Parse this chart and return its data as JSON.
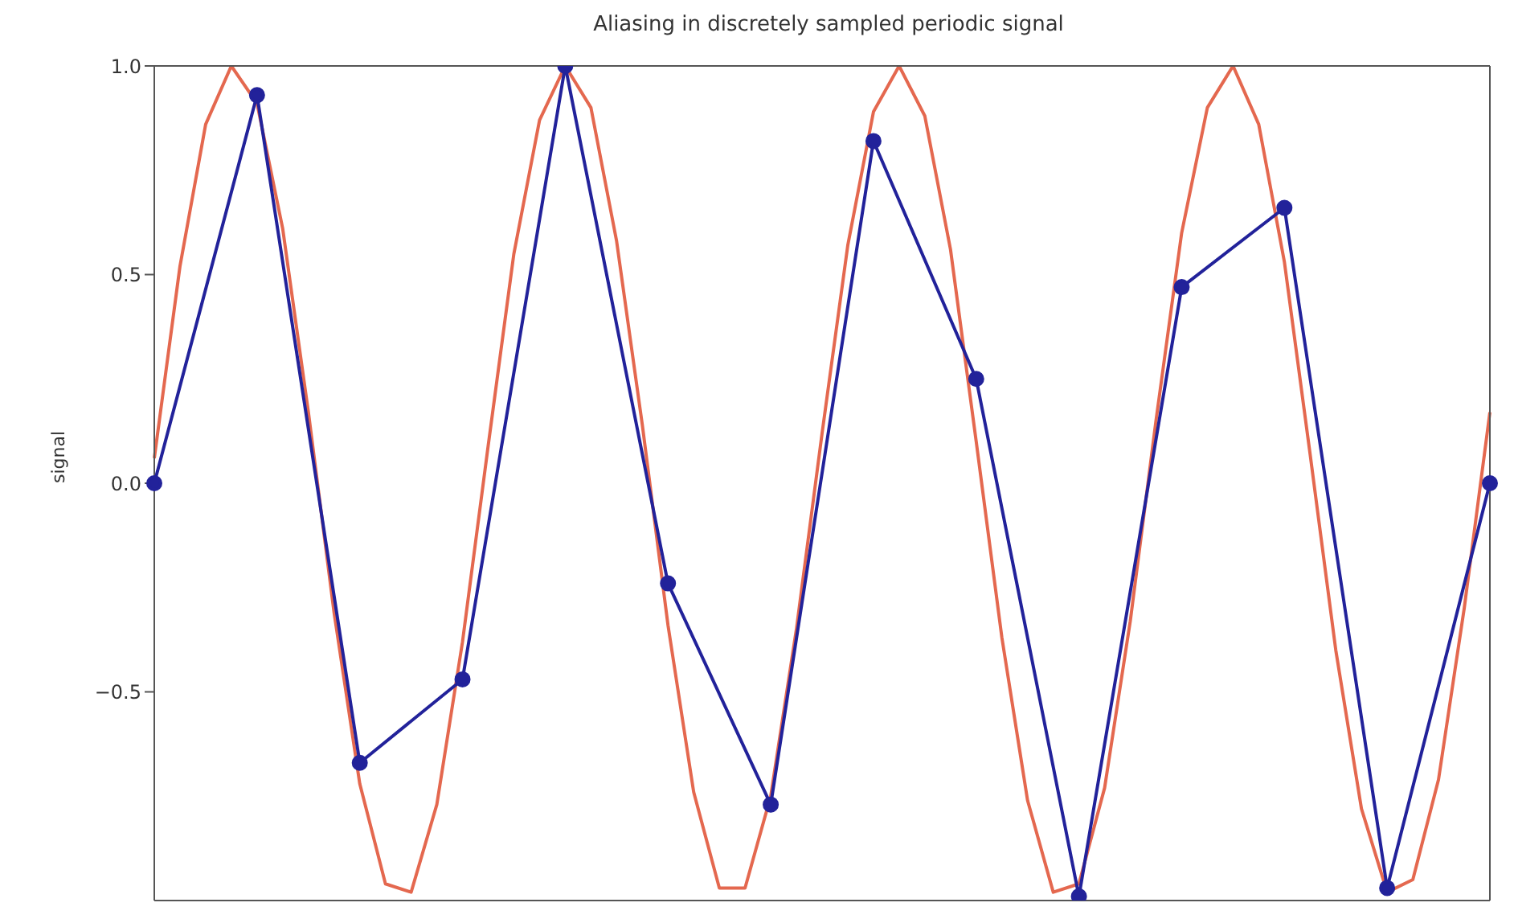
{
  "chart_data": {
    "type": "line",
    "title": "Aliasing in discretely sampled periodic signal",
    "ylabel": "signal",
    "categories": [
      null,
      null,
      null,
      null,
      null,
      null,
      null,
      null,
      null,
      null,
      null,
      null,
      null,
      null,
      null,
      null,
      null,
      null,
      null,
      null,
      null,
      null,
      null,
      null,
      null,
      null,
      null,
      null,
      null,
      null,
      null,
      null,
      null,
      null,
      null,
      null,
      null,
      null,
      null,
      null,
      null,
      null,
      null,
      null,
      null,
      null,
      null,
      null,
      null,
      null,
      null,
      null,
      null
    ],
    "series": [
      {
        "color": "#e4684f",
        "marker": "none",
        "values": [
          0.06,
          0.52,
          0.86,
          1.0,
          0.91,
          0.61,
          0.17,
          -0.31,
          -0.72,
          -0.96,
          -0.98,
          -0.77,
          -0.38,
          0.09,
          0.55,
          0.87,
          1.0,
          0.9,
          0.58,
          0.14,
          -0.34,
          -0.74,
          -0.97,
          -0.97,
          -0.75,
          -0.35,
          0.12,
          0.57,
          0.89,
          1.0,
          0.88,
          0.56,
          0.1,
          -0.37,
          -0.76,
          -0.98,
          -0.96,
          -0.73,
          -0.33,
          0.15,
          0.6,
          0.9,
          1.0,
          0.86,
          0.53,
          0.07,
          -0.4,
          -0.78,
          -0.98,
          -0.95,
          -0.71,
          -0.3,
          0.17
        ]
      },
      {
        "color": "#22229a",
        "marker": "circle",
        "values": [
          0.0,
          null,
          null,
          null,
          0.93,
          null,
          null,
          null,
          -0.67,
          null,
          null,
          null,
          -0.47,
          null,
          null,
          null,
          1.0,
          null,
          null,
          null,
          -0.24,
          null,
          null,
          null,
          -0.77,
          null,
          null,
          null,
          0.82,
          null,
          null,
          null,
          0.25,
          null,
          null,
          null,
          -0.99,
          null,
          null,
          null,
          0.47,
          null,
          null,
          null,
          0.66,
          null,
          null,
          null,
          -0.97,
          null,
          null,
          null,
          0.0
        ]
      }
    ],
    "ylim": [
      -1.0,
      1.0
    ],
    "yticks": [
      {
        "value": -0.5,
        "label": "−0.5"
      },
      {
        "value": 0,
        "label": "0.0"
      },
      0.5,
      {
        "value": 1,
        "label": "1.0"
      }
    ],
    "tick_labels": "y",
    "grid": false
  }
}
